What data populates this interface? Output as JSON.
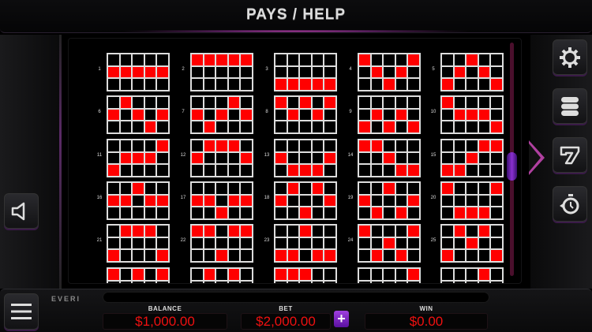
{
  "header": {
    "title": "PAYS / HELP"
  },
  "colors": {
    "accent": "#b040a0",
    "active_cell": "#ff0000",
    "grid_border": "#dddddd",
    "value_text": "#f01010",
    "plus_button": "#8a30d0"
  },
  "paylines": [
    {
      "number": "1",
      "rows": [
        1,
        1,
        1,
        1,
        1
      ]
    },
    {
      "number": "2",
      "rows": [
        0,
        0,
        0,
        0,
        0
      ]
    },
    {
      "number": "3",
      "rows": [
        2,
        2,
        2,
        2,
        2
      ]
    },
    {
      "number": "4",
      "rows": [
        0,
        1,
        2,
        1,
        0
      ]
    },
    {
      "number": "5",
      "rows": [
        2,
        1,
        0,
        1,
        2
      ]
    },
    {
      "number": "6",
      "rows": [
        1,
        0,
        1,
        2,
        1
      ]
    },
    {
      "number": "7",
      "rows": [
        1,
        2,
        1,
        0,
        1
      ]
    },
    {
      "number": "8",
      "rows": [
        0,
        1,
        0,
        1,
        0
      ]
    },
    {
      "number": "9",
      "rows": [
        2,
        1,
        2,
        1,
        2
      ]
    },
    {
      "number": "10",
      "rows": [
        0,
        1,
        1,
        1,
        2
      ]
    },
    {
      "number": "11",
      "rows": [
        2,
        1,
        1,
        1,
        0
      ]
    },
    {
      "number": "12",
      "rows": [
        1,
        0,
        0,
        0,
        1
      ]
    },
    {
      "number": "13",
      "rows": [
        1,
        2,
        2,
        2,
        1
      ]
    },
    {
      "number": "14",
      "rows": [
        0,
        0,
        1,
        2,
        2
      ]
    },
    {
      "number": "15",
      "rows": [
        2,
        2,
        1,
        0,
        0
      ]
    },
    {
      "number": "16",
      "rows": [
        1,
        1,
        0,
        1,
        1
      ]
    },
    {
      "number": "17",
      "rows": [
        1,
        1,
        2,
        1,
        1
      ]
    },
    {
      "number": "18",
      "rows": [
        1,
        0,
        2,
        0,
        1
      ]
    },
    {
      "number": "19",
      "rows": [
        1,
        2,
        0,
        2,
        1
      ]
    },
    {
      "number": "20",
      "rows": [
        0,
        2,
        2,
        2,
        0
      ]
    },
    {
      "number": "21",
      "rows": [
        2,
        0,
        0,
        0,
        2
      ]
    },
    {
      "number": "22",
      "rows": [
        0,
        0,
        2,
        0,
        0
      ]
    },
    {
      "number": "23",
      "rows": [
        2,
        2,
        0,
        2,
        2
      ]
    },
    {
      "number": "24",
      "rows": [
        0,
        2,
        1,
        2,
        0
      ]
    },
    {
      "number": "25",
      "rows": [
        2,
        0,
        1,
        0,
        2
      ]
    }
  ],
  "partial_paylines_top_row": [
    [
      1,
      0,
      1,
      0,
      1
    ],
    [
      0,
      1,
      0,
      1,
      0
    ],
    [
      1,
      1,
      1,
      0,
      0
    ],
    [
      0,
      0,
      0,
      0,
      1
    ],
    [
      0,
      0,
      0,
      1,
      0
    ]
  ],
  "scroll_position_percent": 48,
  "side_buttons": [
    "gear-icon",
    "coins-icon",
    "seven-icon",
    "stopwatch-icon"
  ],
  "brand": "EVERI",
  "footer": {
    "balance_label": "BALANCE",
    "balance": "$1,000.00",
    "bet_label": "BET",
    "bet": "$2,000.00",
    "plus": "+",
    "win_label": "WIN",
    "win": "$0.00"
  }
}
